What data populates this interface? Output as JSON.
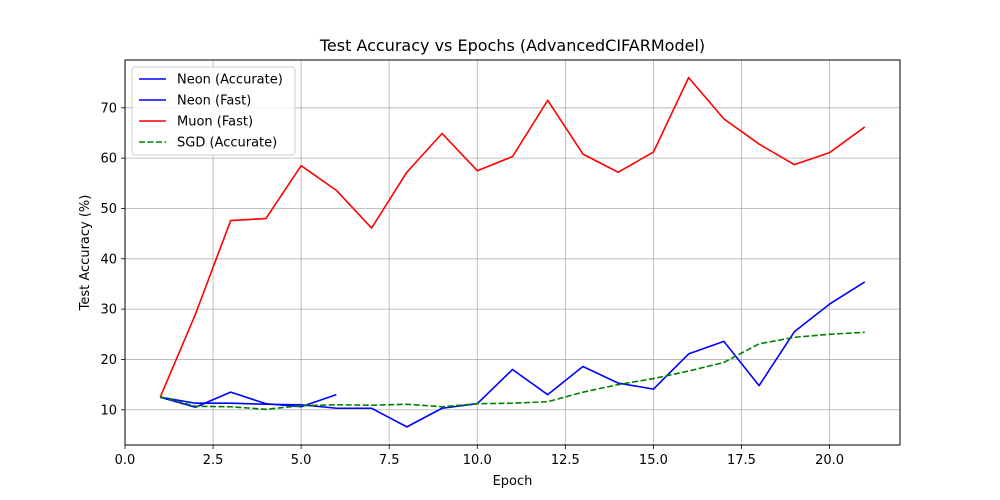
{
  "chart_data": {
    "type": "line",
    "title": "Test Accuracy vs Epochs (AdvancedCIFARModel)",
    "xlabel": "Epoch",
    "ylabel": "Test Accuracy (%)",
    "xlim": [
      0.0,
      22.0
    ],
    "ylim": [
      3.0,
      79.5
    ],
    "xticks": [
      0.0,
      2.5,
      5.0,
      7.5,
      10.0,
      12.5,
      15.0,
      17.5,
      20.0
    ],
    "xtick_labels": [
      "0.0",
      "2.5",
      "5.0",
      "7.5",
      "10.0",
      "12.5",
      "15.0",
      "17.5",
      "20.0"
    ],
    "yticks": [
      10,
      20,
      30,
      40,
      50,
      60,
      70
    ],
    "ytick_labels": [
      "10",
      "20",
      "30",
      "40",
      "50",
      "60",
      "70"
    ],
    "grid": true,
    "legend_position": "top-left",
    "series": [
      {
        "name": "Neon (Accurate)",
        "color": "#0000ff",
        "dash": "solid",
        "x": [
          1,
          2,
          3,
          4,
          5,
          6
        ],
        "y": [
          12.5,
          10.5,
          13.5,
          11.2,
          10.6,
          13.0
        ]
      },
      {
        "name": "Neon (Fast)",
        "color": "#0000ff",
        "dash": "solid",
        "x": [
          1,
          2,
          3,
          4,
          5,
          6,
          7,
          8,
          9,
          10,
          11,
          12,
          13,
          14,
          15,
          16,
          17,
          18,
          19,
          20,
          21
        ],
        "y": [
          12.5,
          11.3,
          11.3,
          11.1,
          11.0,
          10.3,
          10.3,
          6.6,
          10.3,
          11.2,
          18.0,
          13.0,
          18.6,
          15.3,
          14.1,
          21.1,
          23.6,
          14.8,
          25.5,
          31.0,
          35.4
        ]
      },
      {
        "name": "Muon (Fast)",
        "color": "#ff0000",
        "dash": "solid",
        "x": [
          1,
          2,
          3,
          4,
          5,
          6,
          7,
          8,
          9,
          10,
          11,
          12,
          13,
          14,
          15,
          16,
          17,
          18,
          19,
          20,
          21
        ],
        "y": [
          12.5,
          29.0,
          47.6,
          48.0,
          58.5,
          53.6,
          46.1,
          57.2,
          64.9,
          57.5,
          60.3,
          71.5,
          60.8,
          57.2,
          61.2,
          76.0,
          67.8,
          62.8,
          58.7,
          61.1,
          66.2
        ]
      },
      {
        "name": "SGD (Accurate)",
        "color": "#008000",
        "dash": "dashed",
        "x": [
          1,
          2,
          3,
          4,
          5,
          6,
          7,
          8,
          9,
          10,
          11,
          12,
          13,
          14,
          15,
          16,
          17,
          18,
          19,
          20,
          21
        ],
        "y": [
          12.6,
          10.7,
          10.6,
          10.1,
          10.8,
          11.0,
          10.9,
          11.1,
          10.6,
          11.2,
          11.3,
          11.6,
          13.5,
          15.0,
          16.2,
          17.7,
          19.4,
          23.1,
          24.4,
          25.0,
          25.4
        ]
      }
    ]
  }
}
